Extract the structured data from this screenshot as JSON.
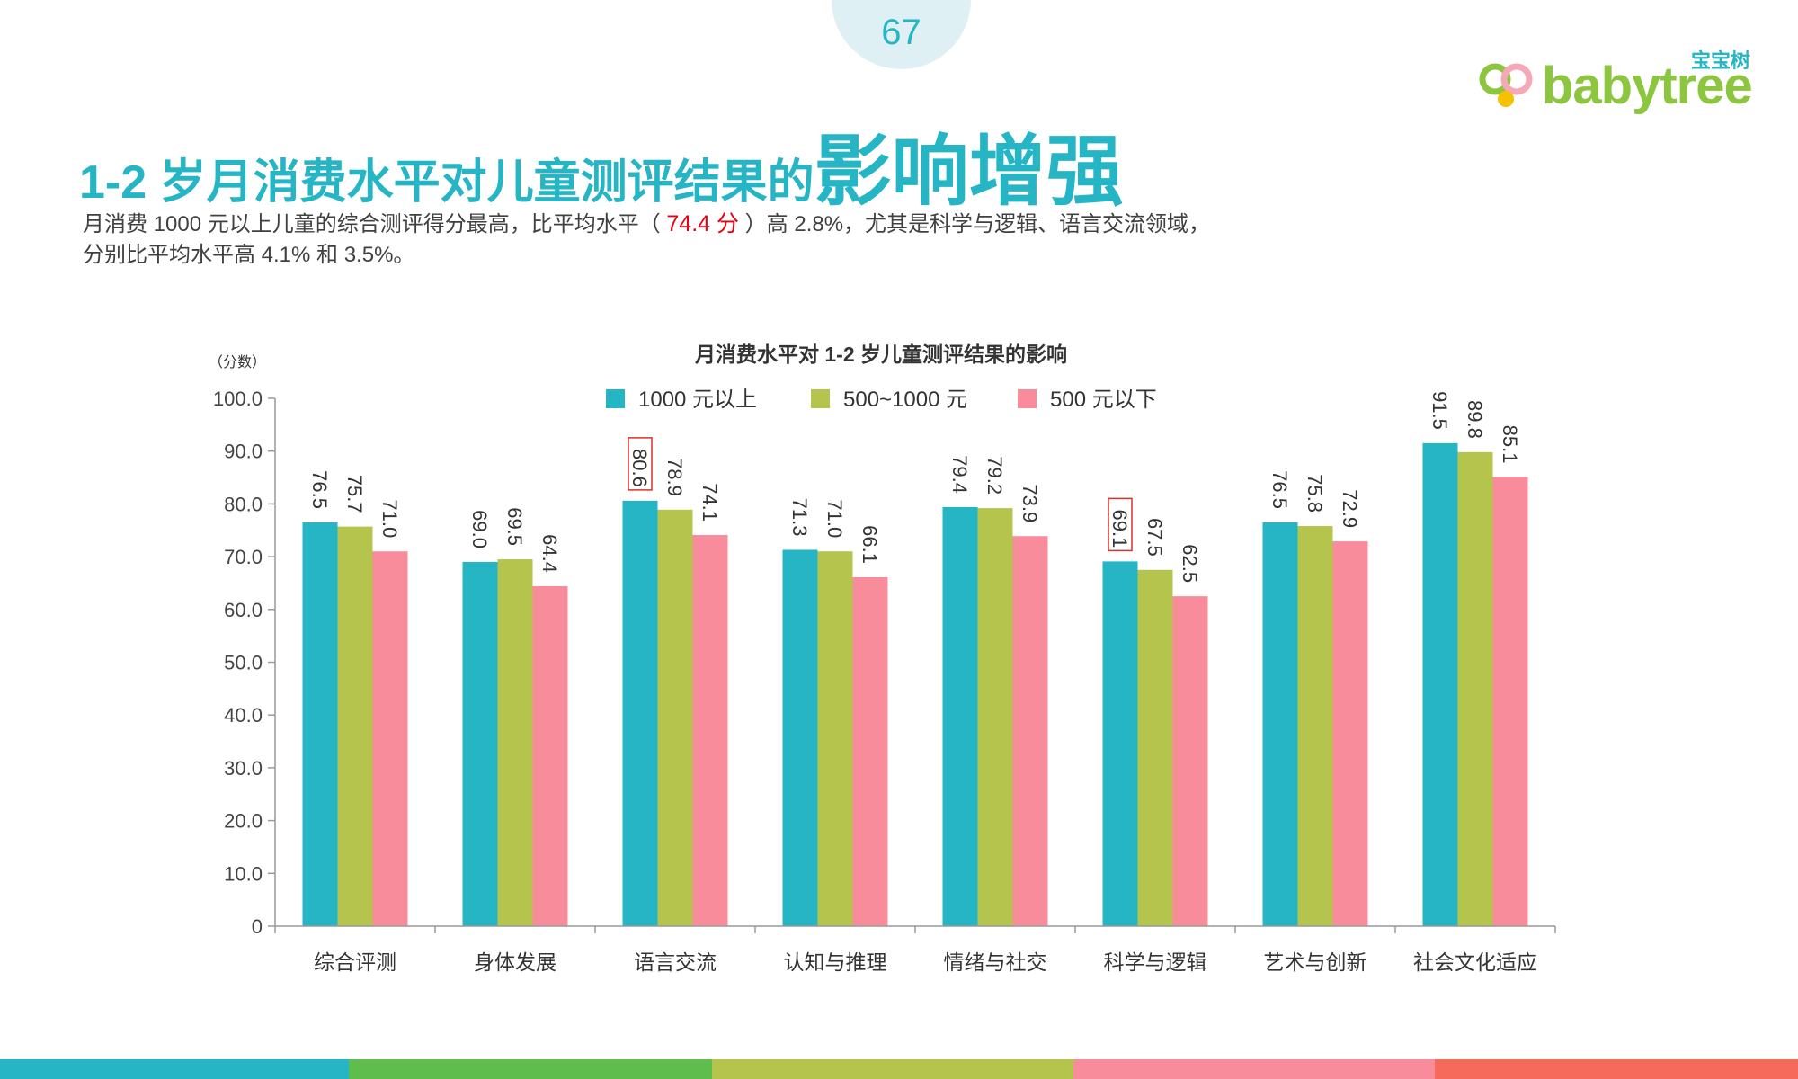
{
  "page_number": "67",
  "logo": {
    "cn": "宝宝树",
    "en": "babytree"
  },
  "title": {
    "part1": "1-2 岁月消费水平对儿童测评结果的",
    "part2": "影响增强"
  },
  "description": {
    "before": "月消费 1000 元以上儿童的综合测评得分最高，比平均水平（ ",
    "highlight": "74.4 分",
    "after": " ）高 2.8%，尤其是科学与逻辑、语言交流领域，",
    "line2": "分别比平均水平高 4.1% 和 3.5%。"
  },
  "colors": {
    "teal": "#25b5c4",
    "green": "#b5c44c",
    "pink": "#f98c9a",
    "highlight_red": "#e60012",
    "bottom_stripes": [
      "#25b5c4",
      "#5fbd4d",
      "#b5c44c",
      "#f98c9a",
      "#f56a5a"
    ]
  },
  "chart_data": {
    "type": "bar",
    "title": "月消费水平对 1-2 岁儿童测评结果的影响",
    "ylabel": "（分数）",
    "ylim": [
      0,
      100
    ],
    "yticks": [
      "0",
      "10.0",
      "20.0",
      "30.0",
      "40.0",
      "50.0",
      "60.0",
      "70.0",
      "80.0",
      "90.0",
      "100.0"
    ],
    "categories": [
      "综合评测",
      "身体发展",
      "语言交流",
      "认知与推理",
      "情绪与社交",
      "科学与逻辑",
      "艺术与创新",
      "社会文化适应"
    ],
    "series": [
      {
        "name": "1000 元以上",
        "color": "#25b5c4",
        "values": [
          76.5,
          69.0,
          80.6,
          71.3,
          79.4,
          69.1,
          76.5,
          91.5
        ]
      },
      {
        "name": "500~1000 元",
        "color": "#b5c44c",
        "values": [
          75.7,
          69.5,
          78.9,
          71.0,
          79.2,
          67.5,
          75.8,
          89.8
        ]
      },
      {
        "name": "500 元以下",
        "color": "#f98c9a",
        "values": [
          71.0,
          64.4,
          74.1,
          66.1,
          73.9,
          62.5,
          72.9,
          85.1
        ]
      }
    ],
    "boxed_labels": [
      {
        "series": 0,
        "category": 2
      },
      {
        "series": 0,
        "category": 5
      }
    ],
    "legend_position": "top",
    "grid": false
  }
}
